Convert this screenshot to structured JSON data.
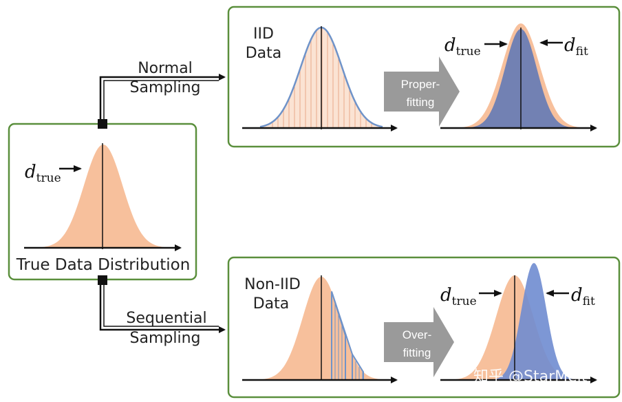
{
  "colors": {
    "box_border": "#5a8f3c",
    "peach": "#f7c09c",
    "blue_fill": "#6a7db4",
    "blue_line": "#6f93c9",
    "big_arrow": "#9a9a9a"
  },
  "true_box": {
    "caption": "True Data Distribution",
    "d_true_sym": "d",
    "d_true_sub": "true"
  },
  "top_path": {
    "line1": "Normal",
    "line2": "Sampling"
  },
  "bottom_path": {
    "line1": "Sequential",
    "line2": "Sampling"
  },
  "top_box": {
    "data_line1": "IID",
    "data_line2": "Data",
    "arrow_line1": "Proper-",
    "arrow_line2": "fitting",
    "d_true_sym": "d",
    "d_true_sub": "true",
    "d_fit_sym": "d",
    "d_fit_sub": "fit"
  },
  "bottom_box": {
    "data_line1": "Non-IID",
    "data_line2": "Data",
    "arrow_line1": "Over-",
    "arrow_line2": "fitting",
    "d_true_sym": "d",
    "d_true_sub": "true",
    "d_fit_sym": "d",
    "d_fit_sub": "fit"
  },
  "watermark": "知乎 @StarMelt"
}
